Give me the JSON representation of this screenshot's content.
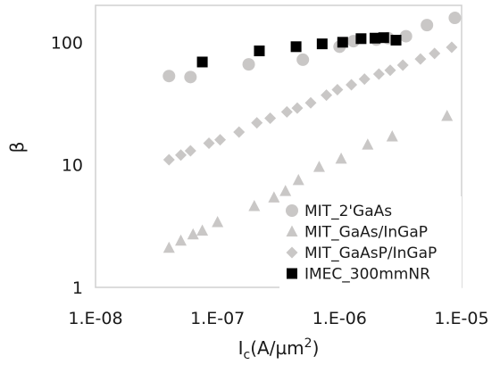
{
  "chart_data": {
    "type": "scatter",
    "title": "",
    "xlabel": {
      "main": "I",
      "sub": "c",
      "rest": "(A/µm",
      "sup": "2",
      "close": ")"
    },
    "ylabel": "β",
    "x_scale": "log",
    "y_scale": "log",
    "xlim": [
      1e-08,
      1e-05
    ],
    "ylim": [
      1,
      200
    ],
    "x_ticks": [
      1e-08,
      1e-07,
      1e-06,
      1e-05
    ],
    "x_tick_labels": [
      "1.E-08",
      "1.E-07",
      "1.E-06",
      "1.E-05"
    ],
    "y_ticks": [
      1,
      10,
      100
    ],
    "y_tick_labels": [
      "1",
      "10",
      "100"
    ],
    "grid": false,
    "legend_position": "bottom-right",
    "series": [
      {
        "name": "MIT_2'GaAs",
        "marker": "circle",
        "color": "#c9c7c6",
        "x": [
          4e-08,
          6e-08,
          1.8e-07,
          5e-07,
          1e-06,
          1.3e-06,
          2e-06,
          2.5e-06,
          3.5e-06,
          5.2e-06,
          8.8e-06
        ],
        "y": [
          53,
          52,
          66,
          72,
          92,
          102,
          105,
          108,
          112,
          138,
          158
        ]
      },
      {
        "name": "MIT_GaAs/InGaP",
        "marker": "triangle",
        "color": "#c9c7c6",
        "x": [
          4e-08,
          5e-08,
          6.3e-08,
          7.5e-08,
          1e-07,
          2e-07,
          2.9e-07,
          3.6e-07,
          4.6e-07,
          6.8e-07,
          1.03e-06,
          1.7e-06,
          2.7e-06,
          7.6e-06
        ],
        "y": [
          2.1,
          2.4,
          2.7,
          2.9,
          3.4,
          4.6,
          5.4,
          6.1,
          7.5,
          9.6,
          11.2,
          14.6,
          17,
          25
        ]
      },
      {
        "name": "MIT_GaAsP/InGaP",
        "marker": "diamond",
        "color": "#c9c7c6",
        "x": [
          4e-08,
          5e-08,
          6e-08,
          8.5e-08,
          1.05e-07,
          1.5e-07,
          2.1e-07,
          2.7e-07,
          3.7e-07,
          4.5e-07,
          5.8e-07,
          7.8e-07,
          9.6e-07,
          1.25e-06,
          1.6e-06,
          2.1e-06,
          2.6e-06,
          3.3e-06,
          4.6e-06,
          6e-06,
          8.3e-06
        ],
        "y": [
          11,
          12,
          13,
          15,
          16,
          18.5,
          22,
          24,
          27,
          29,
          32,
          37,
          41,
          45,
          50,
          55,
          59,
          65,
          73,
          81,
          91
        ]
      },
      {
        "name": "IMEC_300mmNR",
        "marker": "square",
        "color": "#000000",
        "x": [
          7.5e-08,
          2.2e-07,
          4.4e-07,
          7.2e-07,
          1.06e-06,
          1.5e-06,
          1.95e-06,
          2.3e-06,
          2.9e-06
        ],
        "y": [
          69,
          85,
          92,
          97,
          100,
          107,
          108,
          109,
          104
        ]
      }
    ]
  }
}
